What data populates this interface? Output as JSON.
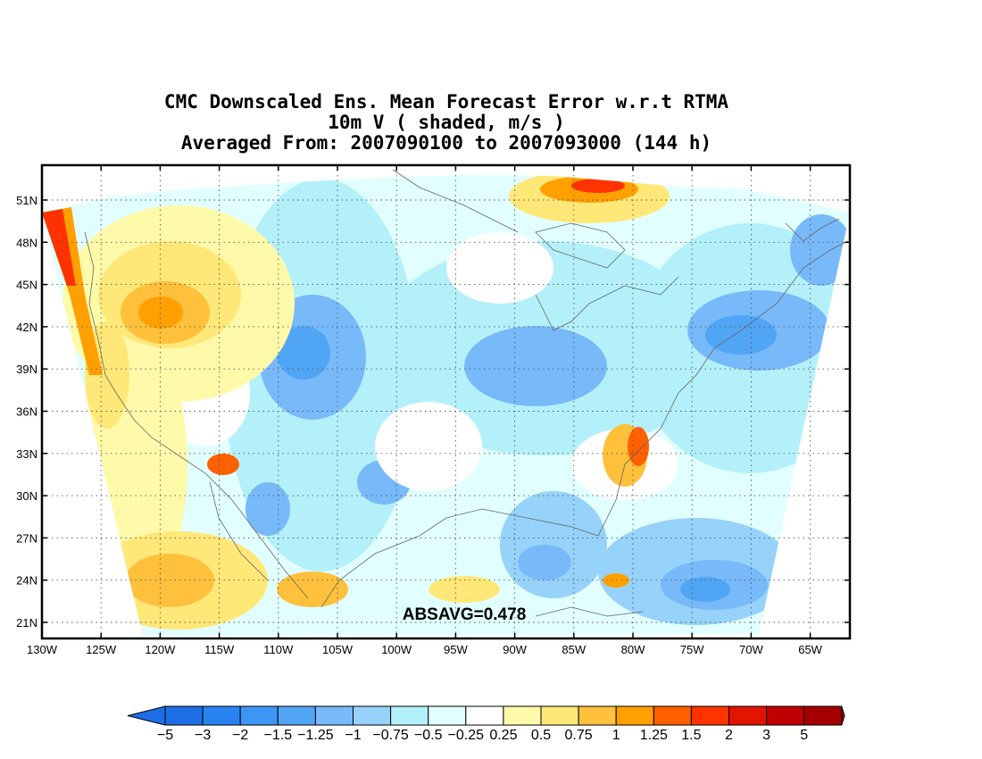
{
  "title": {
    "line1": "CMC Downscaled Ens. Mean Forecast Error w.r.t RTMA",
    "line2": "10m V ( shaded, m/s )",
    "line3": "Averaged From: 2007090100 to 2007093000 (144 h)"
  },
  "map": {
    "lat_labels": [
      "51N",
      "48N",
      "45N",
      "42N",
      "39N",
      "36N",
      "33N",
      "30N",
      "27N",
      "24N",
      "21N"
    ],
    "lon_labels": [
      "130W",
      "125W",
      "120W",
      "115W",
      "110W",
      "105W",
      "100W",
      "95W",
      "90W",
      "85W",
      "80W",
      "75W",
      "70W",
      "65W"
    ],
    "annotation": "ABSAVG=0.478"
  },
  "colorbar": {
    "labels": [
      "−5",
      "−3",
      "−2",
      "−1.5",
      "−1.25",
      "−1",
      "−0.75",
      "−0.5",
      "−0.25",
      "0.25",
      "0.5",
      "0.75",
      "1",
      "1.25",
      "1.5",
      "2",
      "3",
      "5"
    ],
    "colors": [
      "#1e6ee6",
      "#2882f0",
      "#3c96f5",
      "#50a5f5",
      "#78b9fa",
      "#96d2fa",
      "#b4f0fa",
      "#e1ffff",
      "#ffffff",
      "#fffaaa",
      "#ffe878",
      "#ffc03c",
      "#ffa000",
      "#ff6000",
      "#ff3200",
      "#e11400",
      "#c00000",
      "#a50000"
    ],
    "low_arrow_color": "#1e6ee6",
    "high_arrow_color": "#a50000"
  }
}
